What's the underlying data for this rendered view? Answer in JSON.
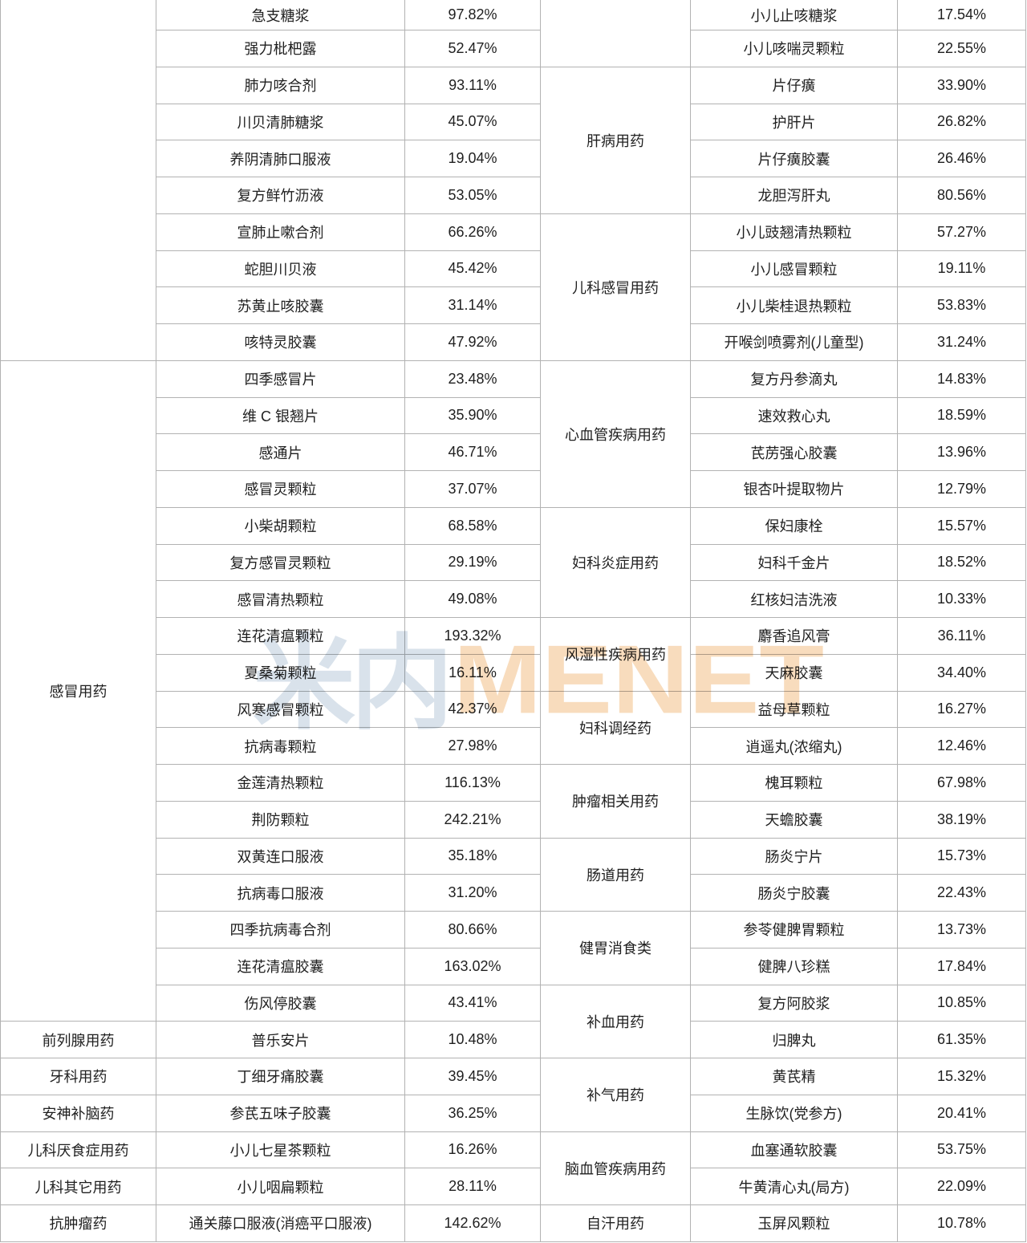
{
  "watermark": {
    "cn_text": "米内",
    "en_text": "MENET",
    "cn_color": "#d9e2eb",
    "en_color": "#f8dcbd"
  },
  "table": {
    "border_color": "#b2b2b2",
    "left_groups": [
      {
        "category": "",
        "items": [
          {
            "drug": "急支糖浆",
            "growth": "97.82%"
          },
          {
            "drug": "强力枇杷露",
            "growth": "52.47%"
          },
          {
            "drug": "肺力咳合剂",
            "growth": "93.11%"
          },
          {
            "drug": "川贝清肺糖浆",
            "growth": "45.07%"
          },
          {
            "drug": "养阴清肺口服液",
            "growth": "19.04%"
          },
          {
            "drug": "复方鲜竹沥液",
            "growth": "53.05%"
          },
          {
            "drug": "宣肺止嗽合剂",
            "growth": "66.26%"
          },
          {
            "drug": "蛇胆川贝液",
            "growth": "45.42%"
          },
          {
            "drug": "苏黄止咳胶囊",
            "growth": "31.14%"
          },
          {
            "drug": "咳特灵胶囊",
            "growth": "47.92%"
          }
        ]
      },
      {
        "category": "感冒用药",
        "items": [
          {
            "drug": "四季感冒片",
            "growth": "23.48%"
          },
          {
            "drug": "维 C 银翘片",
            "growth": "35.90%"
          },
          {
            "drug": "感通片",
            "growth": "46.71%"
          },
          {
            "drug": "感冒灵颗粒",
            "growth": "37.07%"
          },
          {
            "drug": "小柴胡颗粒",
            "growth": "68.58%"
          },
          {
            "drug": "复方感冒灵颗粒",
            "growth": "29.19%"
          },
          {
            "drug": "感冒清热颗粒",
            "growth": "49.08%"
          },
          {
            "drug": "连花清瘟颗粒",
            "growth": "193.32%"
          },
          {
            "drug": "夏桑菊颗粒",
            "growth": "16.11%"
          },
          {
            "drug": "风寒感冒颗粒",
            "growth": "42.37%"
          },
          {
            "drug": "抗病毒颗粒",
            "growth": "27.98%"
          },
          {
            "drug": "金莲清热颗粒",
            "growth": "116.13%"
          },
          {
            "drug": "荆防颗粒",
            "growth": "242.21%"
          },
          {
            "drug": "双黄连口服液",
            "growth": "35.18%"
          },
          {
            "drug": "抗病毒口服液",
            "growth": "31.20%"
          },
          {
            "drug": "四季抗病毒合剂",
            "growth": "80.66%"
          },
          {
            "drug": "连花清瘟胶囊",
            "growth": "163.02%"
          },
          {
            "drug": "伤风停胶囊",
            "growth": "43.41%"
          }
        ]
      },
      {
        "category": "前列腺用药",
        "items": [
          {
            "drug": "普乐安片",
            "growth": "10.48%"
          }
        ]
      },
      {
        "category": "牙科用药",
        "items": [
          {
            "drug": "丁细牙痛胶囊",
            "growth": "39.45%"
          }
        ]
      },
      {
        "category": "安神补脑药",
        "items": [
          {
            "drug": "参芪五味子胶囊",
            "growth": "36.25%"
          }
        ]
      },
      {
        "category": "儿科厌食症用药",
        "items": [
          {
            "drug": "小儿七星茶颗粒",
            "growth": "16.26%"
          }
        ]
      },
      {
        "category": "儿科其它用药",
        "items": [
          {
            "drug": "小儿咽扁颗粒",
            "growth": "28.11%"
          }
        ]
      },
      {
        "category": "抗肿瘤药",
        "items": [
          {
            "drug": "通关藤口服液(消癌平口服液)",
            "growth": "142.62%"
          }
        ]
      }
    ],
    "right_groups": [
      {
        "category": "",
        "items": [
          {
            "drug": "小儿止咳糖浆",
            "growth": "17.54%"
          },
          {
            "drug": "小儿咳喘灵颗粒",
            "growth": "22.55%"
          }
        ]
      },
      {
        "category": "肝病用药",
        "items": [
          {
            "drug": "片仔癀",
            "growth": "33.90%"
          },
          {
            "drug": "护肝片",
            "growth": "26.82%"
          },
          {
            "drug": "片仔癀胶囊",
            "growth": "26.46%"
          },
          {
            "drug": "龙胆泻肝丸",
            "growth": "80.56%"
          }
        ]
      },
      {
        "category": "儿科感冒用药",
        "items": [
          {
            "drug": "小儿豉翘清热颗粒",
            "growth": "57.27%"
          },
          {
            "drug": "小儿感冒颗粒",
            "growth": "19.11%"
          },
          {
            "drug": "小儿柴桂退热颗粒",
            "growth": "53.83%"
          },
          {
            "drug": "开喉剑喷雾剂(儿童型)",
            "growth": "31.24%"
          }
        ]
      },
      {
        "category": "心血管疾病用药",
        "items": [
          {
            "drug": "复方丹参滴丸",
            "growth": "14.83%"
          },
          {
            "drug": "速效救心丸",
            "growth": "18.59%"
          },
          {
            "drug": "芪苈强心胶囊",
            "growth": "13.96%"
          },
          {
            "drug": "银杏叶提取物片",
            "growth": "12.79%"
          }
        ]
      },
      {
        "category": "妇科炎症用药",
        "items": [
          {
            "drug": "保妇康栓",
            "growth": "15.57%"
          },
          {
            "drug": "妇科千金片",
            "growth": "18.52%"
          },
          {
            "drug": "红核妇洁洗液",
            "growth": "10.33%"
          }
        ]
      },
      {
        "category": "风湿性疾病用药",
        "items": [
          {
            "drug": "麝香追风膏",
            "growth": "36.11%"
          },
          {
            "drug": "天麻胶囊",
            "growth": "34.40%"
          }
        ]
      },
      {
        "category": "妇科调经药",
        "items": [
          {
            "drug": "益母草颗粒",
            "growth": "16.27%"
          },
          {
            "drug": "逍遥丸(浓缩丸)",
            "growth": "12.46%"
          }
        ]
      },
      {
        "category": "肿瘤相关用药",
        "items": [
          {
            "drug": "槐耳颗粒",
            "growth": "67.98%"
          },
          {
            "drug": "天蟾胶囊",
            "growth": "38.19%"
          }
        ]
      },
      {
        "category": "肠道用药",
        "items": [
          {
            "drug": "肠炎宁片",
            "growth": "15.73%"
          },
          {
            "drug": "肠炎宁胶囊",
            "growth": "22.43%"
          }
        ]
      },
      {
        "category": "健胃消食类",
        "items": [
          {
            "drug": "参苓健脾胃颗粒",
            "growth": "13.73%"
          },
          {
            "drug": "健脾八珍糕",
            "growth": "17.84%"
          }
        ]
      },
      {
        "category": "补血用药",
        "items": [
          {
            "drug": "复方阿胶浆",
            "growth": "10.85%"
          },
          {
            "drug": "归脾丸",
            "growth": "61.35%"
          }
        ]
      },
      {
        "category": "补气用药",
        "items": [
          {
            "drug": "黄芪精",
            "growth": "15.32%"
          },
          {
            "drug": "生脉饮(党参方)",
            "growth": "20.41%"
          }
        ]
      },
      {
        "category": "脑血管疾病用药",
        "items": [
          {
            "drug": "血塞通软胶囊",
            "growth": "53.75%"
          },
          {
            "drug": "牛黄清心丸(局方)",
            "growth": "22.09%"
          }
        ]
      },
      {
        "category": "自汗用药",
        "items": [
          {
            "drug": "玉屏风颗粒",
            "growth": "10.78%"
          }
        ]
      }
    ]
  }
}
